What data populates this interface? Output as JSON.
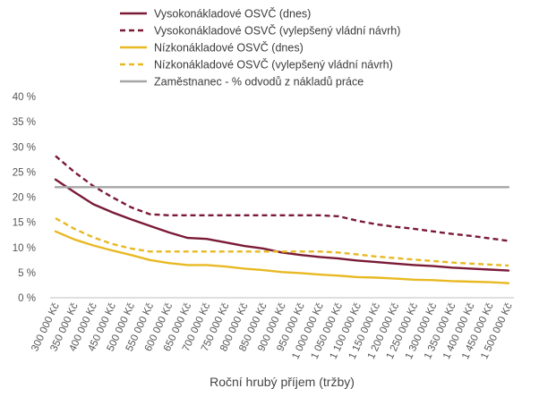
{
  "chart_data": {
    "type": "line",
    "xlabel": "Roční hrubý příjem (tržby)",
    "ylabel": "",
    "ylim": [
      0,
      40
    ],
    "grid": false,
    "legend_position": "top",
    "y_ticks": [
      "0 %",
      "5 %",
      "10 %",
      "15 %",
      "20 %",
      "25 %",
      "30 %",
      "35 %",
      "40 %"
    ],
    "x": [
      300000,
      350000,
      400000,
      450000,
      500000,
      550000,
      600000,
      650000,
      700000,
      750000,
      800000,
      850000,
      900000,
      950000,
      1000000,
      1050000,
      1100000,
      1150000,
      1200000,
      1250000,
      1300000,
      1350000,
      1400000,
      1450000,
      1500000
    ],
    "x_tick_labels": [
      "300 000 Kč",
      "350 000 Kč",
      "400 000 Kč",
      "450 000 Kč",
      "500 000 Kč",
      "550 000 Kč",
      "600 000 Kč",
      "650 000 Kč",
      "700 000 Kč",
      "750 000 Kč",
      "800 000 Kč",
      "850 000 Kč",
      "900 000 Kč",
      "950 000 Kč",
      "1 000 000 Kč",
      "1 050 000 Kč",
      "1 100 000 Kč",
      "1 150 000 Kč",
      "1 200 000 Kč",
      "1 250 000 Kč",
      "1 300 000 Kč",
      "1 350 000 Kč",
      "1 400 000 Kč",
      "1 450 000 Kč",
      "1 500 000 Kč"
    ],
    "series": [
      {
        "name": "Vysokonákladové OSVČ (dnes)",
        "color": "#7a1a36",
        "dash": false,
        "values": [
          23.5,
          21.0,
          18.6,
          17.0,
          15.6,
          14.3,
          13.0,
          11.9,
          11.7,
          11.0,
          10.3,
          9.8,
          9.0,
          8.5,
          8.1,
          7.8,
          7.4,
          7.1,
          6.8,
          6.5,
          6.3,
          6.0,
          5.8,
          5.6,
          5.4
        ]
      },
      {
        "name": "Vysokonákladové OSVČ (vylepšený vládní návrh)",
        "color": "#7a1a36",
        "dash": true,
        "values": [
          28.2,
          25.0,
          22.2,
          20.0,
          18.0,
          16.6,
          16.4,
          16.4,
          16.4,
          16.4,
          16.4,
          16.4,
          16.4,
          16.4,
          16.4,
          16.2,
          15.3,
          14.6,
          14.1,
          13.7,
          13.2,
          12.7,
          12.3,
          11.8,
          11.3
        ]
      },
      {
        "name": "Nízkonákladové OSVČ (dnes)",
        "color": "#e8b923",
        "dash": false,
        "values": [
          13.2,
          11.6,
          10.4,
          9.4,
          8.5,
          7.5,
          6.9,
          6.5,
          6.5,
          6.2,
          5.8,
          5.5,
          5.1,
          4.9,
          4.6,
          4.4,
          4.1,
          4.0,
          3.8,
          3.6,
          3.5,
          3.3,
          3.2,
          3.1,
          2.9
        ]
      },
      {
        "name": "Nízkonákladové OSVČ (vylepšený vládní návrh)",
        "color": "#e8b923",
        "dash": true,
        "values": [
          15.8,
          13.7,
          12.0,
          10.7,
          9.8,
          9.2,
          9.2,
          9.2,
          9.2,
          9.2,
          9.2,
          9.2,
          9.2,
          9.2,
          9.2,
          9.0,
          8.6,
          8.2,
          7.9,
          7.6,
          7.3,
          7.0,
          6.8,
          6.6,
          6.4
        ]
      },
      {
        "name": "Zaměstnanec - % odvodů z nákladů práce",
        "color": "#a6a6a6",
        "dash": false,
        "values": [
          22.0,
          22.0,
          22.0,
          22.0,
          22.0,
          22.0,
          22.0,
          22.0,
          22.0,
          22.0,
          22.0,
          22.0,
          22.0,
          22.0,
          22.0,
          22.0,
          22.0,
          22.0,
          22.0,
          22.0,
          22.0,
          22.0,
          22.0,
          22.0,
          22.0
        ]
      }
    ]
  }
}
